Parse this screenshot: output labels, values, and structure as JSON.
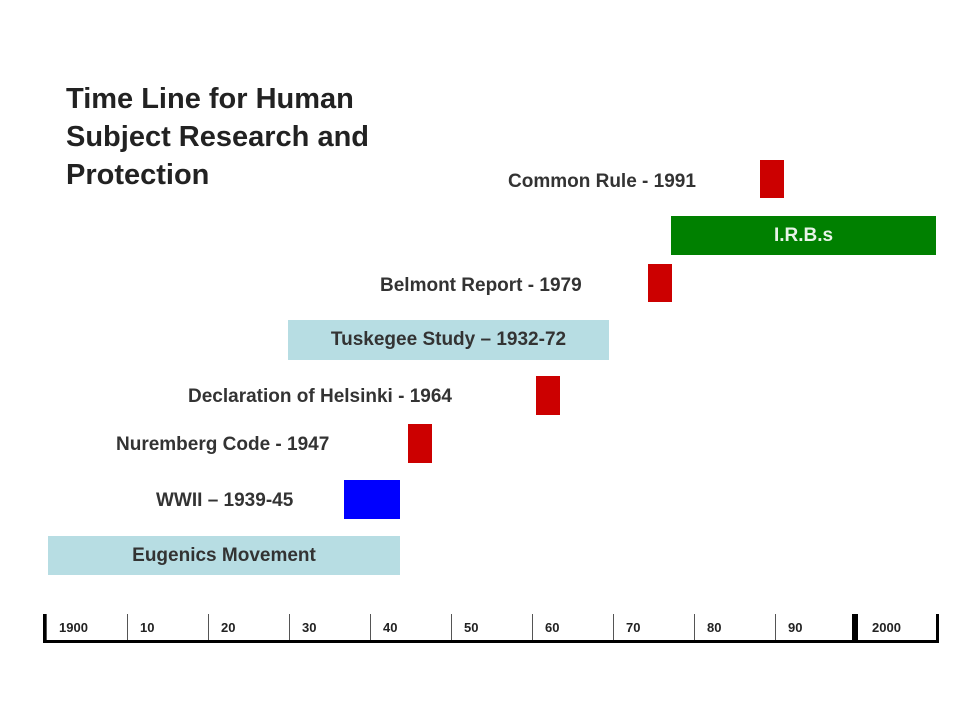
{
  "title": "Time Line for Human Subject Research and Protection",
  "events": {
    "common_rule": "Common Rule - 1991",
    "irbs": "I.R.B.s",
    "belmont": "Belmont Report - 1979",
    "tuskegee": "Tuskegee Study – 1932-72",
    "helsinki": "Declaration of Helsinki - 1964",
    "nuremberg": "Nuremberg Code - 1947",
    "wwii": "WWII – 1939-45",
    "eugenics": "Eugenics Movement"
  },
  "colors": {
    "event_marker": "#cc0000",
    "wwii": "#0000ff",
    "irbs": "#008000",
    "study_bar": "#b7dde3"
  },
  "axis": {
    "ticks": [
      "1900",
      "10",
      "20",
      "30",
      "40",
      "50",
      "60",
      "70",
      "80",
      "90",
      "2000"
    ]
  }
}
